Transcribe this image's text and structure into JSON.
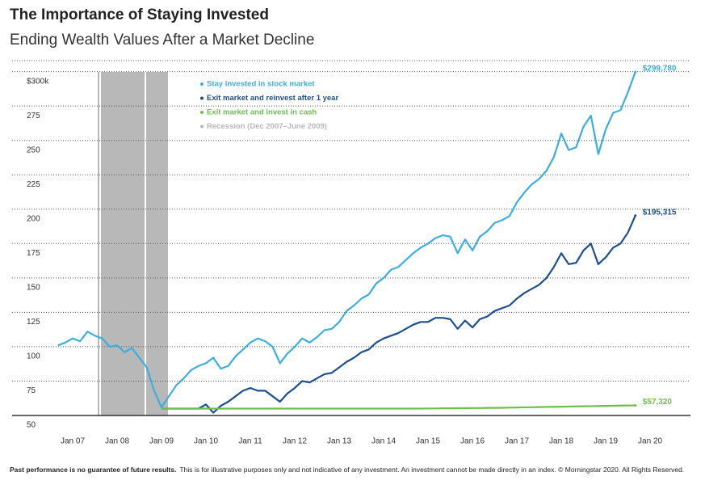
{
  "chart_data": {
    "type": "line",
    "title": "The Importance of Staying Invested",
    "subtitle": "Ending Wealth Values After a Market Decline",
    "categories": [
      null,
      null,
      "Jan 07",
      null,
      null,
      null,
      null,
      null,
      "Jan 08",
      null,
      null,
      null,
      null,
      null,
      "Jan 09",
      null,
      null,
      null,
      null,
      null,
      "Jan 10",
      null,
      null,
      null,
      null,
      null,
      "Jan 11",
      null,
      null,
      null,
      null,
      null,
      "Jan 12",
      null,
      null,
      null,
      null,
      null,
      "Jan 13",
      null,
      null,
      null,
      null,
      null,
      "Jan 14",
      null,
      null,
      null,
      null,
      null,
      "Jan 15",
      null,
      null,
      null,
      null,
      null,
      "Jan 16",
      null,
      null,
      null,
      null,
      null,
      "Jan 17",
      null,
      null,
      null,
      null,
      null,
      "Jan 18",
      null,
      null,
      null,
      null,
      null,
      "Jan 19",
      null,
      null,
      null,
      null,
      null,
      "Jan 20"
    ],
    "series": [
      {
        "name": "Stay invested in stock market",
        "color": "#3aaee0",
        "values": [
          101,
          103,
          106,
          104,
          111,
          108,
          106,
          100,
          101,
          96,
          99,
          92,
          85,
          68,
          56,
          64,
          72,
          77,
          83,
          86,
          88,
          92,
          84,
          86,
          93,
          98,
          103,
          106,
          104,
          100,
          88,
          95,
          100,
          106,
          103,
          107,
          112,
          113,
          118,
          126,
          130,
          135,
          138,
          146,
          150,
          156,
          158,
          163,
          168,
          172,
          175,
          179,
          181,
          180,
          168,
          178,
          170,
          180,
          184,
          190,
          192,
          195,
          205,
          212,
          218,
          222,
          228,
          238,
          255,
          243,
          245,
          260,
          268,
          240,
          258,
          270,
          272,
          285,
          299.78,
          null,
          null
        ],
        "value_labels": [
          null,
          null,
          null,
          null,
          null,
          null,
          null,
          null,
          null,
          null,
          null,
          null,
          null,
          null,
          null,
          null,
          null,
          null,
          null,
          null,
          null,
          null,
          null,
          null,
          null,
          null,
          null,
          null,
          null,
          null,
          null,
          null,
          null,
          null,
          null,
          null,
          null,
          null,
          null,
          null,
          null,
          null,
          null,
          null,
          null,
          null,
          null,
          null,
          null,
          null,
          null,
          null,
          null,
          null,
          null,
          null,
          null,
          null,
          null,
          null,
          null,
          null,
          null,
          null,
          null,
          null,
          null,
          null,
          null,
          null,
          null,
          null,
          null,
          null,
          null,
          null,
          null,
          null,
          "$299,780",
          null,
          null
        ]
      },
      {
        "name": "Exit market and reinvest after 1 year",
        "color": "#1c4f91",
        "values": [
          null,
          null,
          null,
          null,
          null,
          null,
          null,
          null,
          null,
          null,
          null,
          null,
          null,
          null,
          55,
          55,
          55,
          55,
          55,
          55,
          58,
          52,
          57,
          60,
          64,
          68,
          70,
          68,
          68,
          64,
          60,
          66,
          70,
          75,
          74,
          77,
          80,
          81,
          85,
          89,
          92,
          96,
          98,
          103,
          106,
          108,
          110,
          113,
          116,
          118,
          118,
          121,
          121,
          120,
          113,
          119,
          114,
          120,
          122,
          126,
          128,
          130,
          135,
          139,
          142,
          145,
          150,
          158,
          168,
          160,
          161,
          170,
          175,
          160,
          165,
          172,
          175,
          183,
          195.315,
          null,
          null
        ],
        "value_labels": [
          null,
          null,
          null,
          null,
          null,
          null,
          null,
          null,
          null,
          null,
          null,
          null,
          null,
          null,
          null,
          null,
          null,
          null,
          null,
          null,
          null,
          null,
          null,
          null,
          null,
          null,
          null,
          null,
          null,
          null,
          null,
          null,
          null,
          null,
          null,
          null,
          null,
          null,
          null,
          null,
          null,
          null,
          null,
          null,
          null,
          null,
          null,
          null,
          null,
          null,
          null,
          null,
          null,
          null,
          null,
          null,
          null,
          null,
          null,
          null,
          null,
          null,
          null,
          null,
          null,
          null,
          null,
          null,
          null,
          null,
          null,
          null,
          null,
          null,
          null,
          null,
          null,
          null,
          "$195,315",
          null,
          null
        ]
      },
      {
        "name": "Exit market and invest in cash",
        "color": "#6cbf4a",
        "values": [
          null,
          null,
          null,
          null,
          null,
          null,
          null,
          null,
          null,
          null,
          null,
          null,
          null,
          null,
          55,
          55,
          55,
          55,
          55,
          55,
          55,
          55,
          55,
          55,
          55,
          55,
          55,
          55,
          55,
          55,
          55,
          55,
          55,
          55,
          55,
          55,
          55,
          55,
          55,
          55,
          55,
          55,
          55,
          55,
          55,
          55,
          55,
          55,
          55,
          55,
          55.1,
          55.1,
          55.2,
          55.2,
          55.3,
          55.3,
          55.4,
          55.4,
          55.5,
          55.5,
          55.6,
          55.7,
          55.8,
          55.9,
          56.0,
          56.1,
          56.2,
          56.3,
          56.4,
          56.5,
          56.6,
          56.7,
          56.8,
          56.9,
          57.0,
          57.1,
          57.2,
          57.25,
          57.32,
          null,
          null
        ],
        "value_labels": [
          null,
          null,
          null,
          null,
          null,
          null,
          null,
          null,
          null,
          null,
          null,
          null,
          null,
          null,
          null,
          null,
          null,
          null,
          null,
          null,
          null,
          null,
          null,
          null,
          null,
          null,
          null,
          null,
          null,
          null,
          null,
          null,
          null,
          null,
          null,
          null,
          null,
          null,
          null,
          null,
          null,
          null,
          null,
          null,
          null,
          null,
          null,
          null,
          null,
          null,
          null,
          null,
          null,
          null,
          null,
          null,
          null,
          null,
          null,
          null,
          null,
          null,
          null,
          null,
          null,
          null,
          null,
          null,
          null,
          null,
          null,
          null,
          null,
          null,
          null,
          null,
          null,
          null,
          "$57,320",
          null,
          null
        ]
      }
    ],
    "recession": {
      "label": "Recession (Dec 2007–June 2009)",
      "color": "#b8b8b8"
    },
    "ylim": [
      50,
      308
    ],
    "yticks": [
      50,
      75,
      100,
      125,
      150,
      175,
      200,
      225,
      250,
      275,
      {
        "value": 300,
        "label": "$300k"
      }
    ],
    "grid": true,
    "footnote_bold": "Past performance is no guarantee of future results.",
    "footnote": "This is for illustrative purposes only and not indicative of any investment. An investment cannot be made directly in an index. © Morningstar 2020. All Rights Reserved."
  }
}
